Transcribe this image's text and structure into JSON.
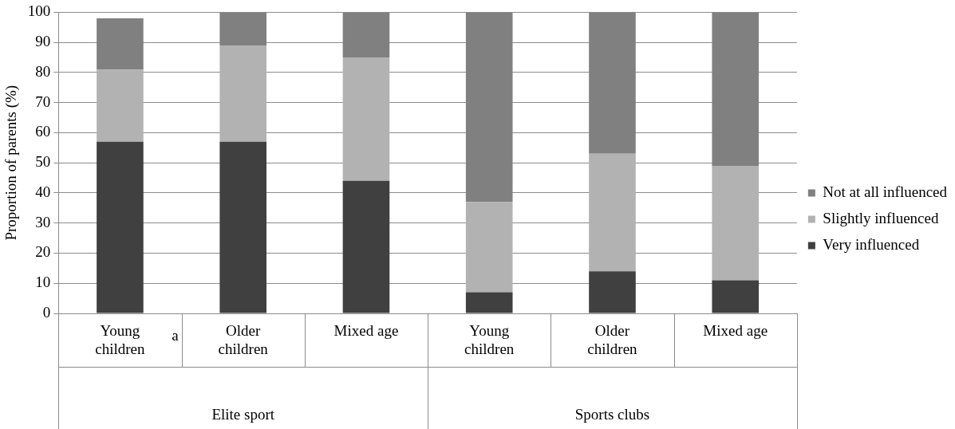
{
  "chart_data": {
    "type": "bar",
    "stacked": true,
    "ylabel": "Proportion of parents (%)",
    "categories": [
      "Young children",
      "Older children",
      "Mixed age",
      "Young children",
      "Older children",
      "Mixed age"
    ],
    "series": [
      {
        "name": "Very influenced",
        "color": "#404040",
        "values": [
          57,
          57,
          44,
          7,
          14,
          11
        ]
      },
      {
        "name": "Slightly influenced",
        "color": "#b2b2b2",
        "values": [
          24,
          32,
          41,
          30,
          39,
          38
        ]
      },
      {
        "name": "Not at all influenced",
        "color": "#808080",
        "values": [
          17,
          11,
          15,
          63,
          47,
          51
        ]
      }
    ],
    "ylim": [
      0,
      100
    ],
    "yticks": [
      0,
      10,
      20,
      30,
      40,
      50,
      60,
      70,
      80,
      90,
      100
    ],
    "grid": "y",
    "legend": "right",
    "annotations": [
      "a",
      "Elite sport",
      "Sports clubs"
    ]
  }
}
